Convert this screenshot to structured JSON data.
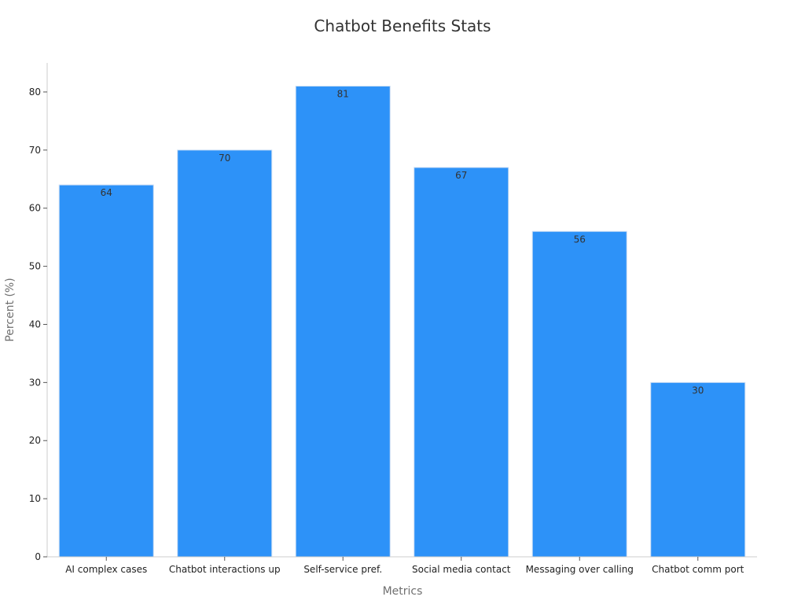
{
  "chart_data": {
    "type": "bar",
    "title": "Chatbot Benefits Stats",
    "xlabel": "Metrics",
    "ylabel": "Percent (%)",
    "categories": [
      "AI complex cases",
      "Chatbot interactions up",
      "Self-service pref.",
      "Social media contact",
      "Messaging over calling",
      "Chatbot comm port"
    ],
    "values": [
      64,
      70,
      81,
      67,
      56,
      30
    ],
    "ylim": [
      0,
      85
    ],
    "yticks": [
      0,
      10,
      20,
      30,
      40,
      50,
      60,
      70,
      80
    ],
    "data_labels": true,
    "grid": false,
    "legend": "none",
    "colors": {
      "bar": "#2d92f8",
      "bar_edge": "#c8dcf4",
      "axis": "#cccccc",
      "tick_text": "#222222",
      "axis_title": "#707070",
      "title": "#333333",
      "data_label": "#333333"
    }
  }
}
